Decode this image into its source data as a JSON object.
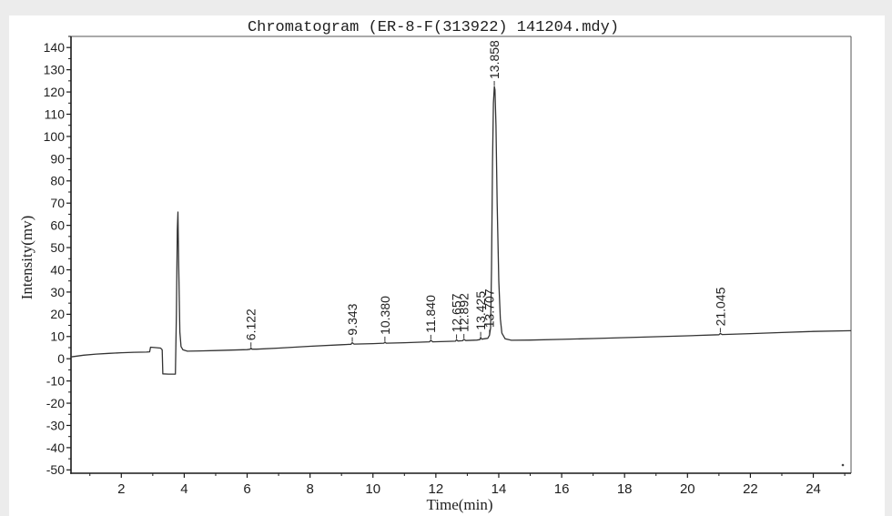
{
  "colors": {
    "background": "#ececec",
    "panel": "#ffffff",
    "trace": "#333333",
    "axis": "#1a1a1a",
    "frame": "#555555"
  },
  "chart_data": {
    "type": "line",
    "title": "Chromatogram (ER-8-F(313922) 141204.mdy)",
    "xlabel": "Time(min)",
    "ylabel": "Intensity(mv)",
    "xlim": [
      0.4,
      25.2
    ],
    "ylim": [
      -51.5,
      145
    ],
    "xticks": [
      2,
      4,
      6,
      8,
      10,
      12,
      14,
      16,
      18,
      20,
      22,
      24
    ],
    "yticks": [
      140,
      130,
      120,
      110,
      100,
      90,
      80,
      70,
      60,
      50,
      40,
      30,
      20,
      10,
      0,
      -10,
      -20,
      -30,
      -40,
      -50
    ],
    "grid": false,
    "series": [
      {
        "x": [
          0.4,
          0.8,
          1.2,
          1.6,
          2.0,
          2.4,
          2.8,
          2.9,
          2.93,
          3.1,
          3.25,
          3.3,
          3.32,
          3.5,
          3.72,
          3.75,
          3.78,
          3.8,
          3.82,
          3.86,
          3.9,
          3.96,
          4.1,
          4.5,
          5.0,
          5.5,
          6.0,
          6.1,
          6.122,
          6.15,
          6.3,
          7.0,
          8.0,
          9.0,
          9.3,
          9.343,
          9.4,
          10.0,
          10.35,
          10.38,
          10.42,
          11.0,
          11.8,
          11.84,
          11.9,
          12.4,
          12.62,
          12.657,
          12.7,
          12.85,
          12.892,
          12.95,
          13.3,
          13.4,
          13.425,
          13.46,
          13.65,
          13.707,
          13.74,
          13.77,
          13.8,
          13.83,
          13.858,
          13.88,
          13.91,
          13.95,
          14.0,
          14.05,
          14.1,
          14.2,
          14.4,
          15.0,
          16.0,
          17.0,
          18.0,
          19.0,
          20.0,
          21.0,
          21.045,
          21.1,
          22.0,
          23.0,
          24.0,
          25.2
        ],
        "y": [
          0.8,
          1.6,
          2.1,
          2.4,
          2.7,
          2.9,
          3.0,
          3.1,
          5.2,
          5.0,
          4.8,
          4.0,
          -6.8,
          -6.9,
          -6.9,
          20,
          58,
          66,
          45,
          12,
          5.5,
          4.0,
          3.4,
          3.5,
          3.7,
          3.9,
          4.1,
          4.3,
          4.9,
          4.3,
          4.3,
          4.8,
          5.6,
          6.3,
          6.5,
          7.2,
          6.6,
          6.8,
          7.0,
          7.5,
          7.0,
          7.2,
          7.6,
          8.3,
          7.6,
          7.8,
          7.9,
          8.5,
          8.0,
          8.1,
          8.7,
          8.2,
          8.4,
          8.6,
          9.6,
          8.8,
          9.2,
          10.6,
          14,
          40,
          88,
          115,
          122.5,
          121,
          105,
          70,
          35,
          18,
          11.5,
          9.0,
          8.3,
          8.4,
          8.7,
          9.1,
          9.5,
          9.9,
          10.3,
          10.8,
          11.4,
          10.9,
          11.3,
          11.8,
          12.3,
          12.6
        ]
      }
    ],
    "peaks": [
      {
        "label": "6.122",
        "x": 6.122,
        "y": 4.9
      },
      {
        "label": "9.343",
        "x": 9.343,
        "y": 7.2
      },
      {
        "label": "10.380",
        "x": 10.38,
        "y": 7.5
      },
      {
        "label": "11.840",
        "x": 11.84,
        "y": 8.3
      },
      {
        "label": "12.657",
        "x": 12.657,
        "y": 8.5
      },
      {
        "label": "12.892",
        "x": 12.892,
        "y": 8.7
      },
      {
        "label": "13.425",
        "x": 13.425,
        "y": 9.6
      },
      {
        "label": "13.707",
        "x": 13.707,
        "y": 10.6
      },
      {
        "label": "13.858",
        "x": 13.858,
        "y": 122.5
      },
      {
        "label": "21.045",
        "x": 21.045,
        "y": 11.4
      }
    ]
  }
}
